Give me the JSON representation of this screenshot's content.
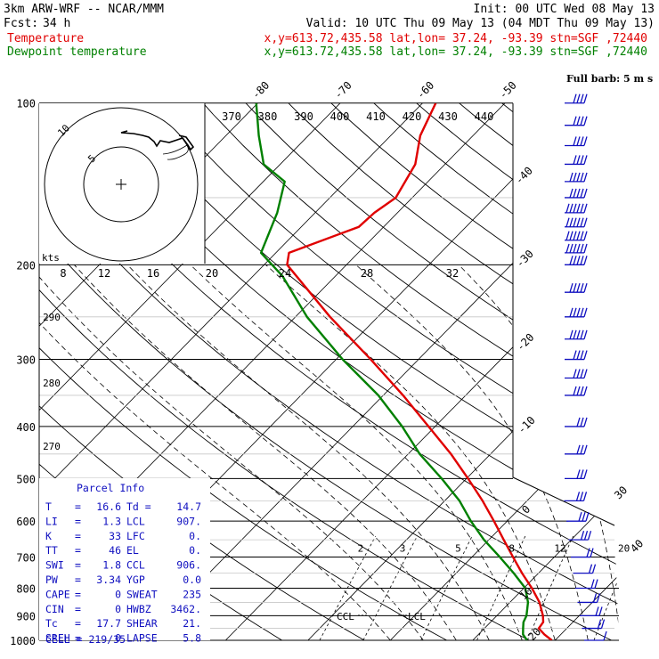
{
  "header": {
    "model": "3km ARW-WRF -- NCAR/MMM",
    "init": "Init: 00 UTC Wed 08 May 13",
    "fcst_label": "Fcst:",
    "fcst_value": "34 h",
    "valid": "Valid: 10 UTC Thu 09 May 13 (04 MDT Thu 09 May 13)",
    "temp_label": "Temperature",
    "dew_label": "Dewpoint temperature",
    "temp_info": "x,y=613.72,435.58   lat,lon= 37.24, -93.39   stn=SGF ,72440",
    "dew_info": "x,y=613.72,435.58   lat,lon= 37.24, -93.39   stn=SGF ,72440"
  },
  "colors": {
    "temperature": "#e00000",
    "dewpoint": "#008000",
    "panel": "#1010c0",
    "grid": "#000000",
    "hodo_trace": "#000000"
  },
  "chart_data": {
    "type": "line",
    "title": "",
    "xlabel": "",
    "ylabel": "",
    "pressure_ticks": [
      100,
      200,
      300,
      400,
      500,
      600,
      700,
      800,
      900,
      1000
    ],
    "skew_temperature_labels": [
      -80,
      -70,
      -60,
      -50,
      -40,
      -30,
      -20,
      -10,
      0,
      10,
      20,
      30,
      40
    ],
    "theta_labels_top": [
      370,
      380,
      390,
      400,
      410,
      420,
      430,
      440
    ],
    "theta_labels_left": [
      290,
      280,
      270
    ],
    "mixing_ratio_labels": [
      2,
      3,
      5,
      8,
      12,
      20
    ],
    "series": [
      {
        "name": "Temperature",
        "x_label": "temperature_C",
        "points": [
          [
            1000,
            19.6
          ],
          [
            975,
            18.0
          ],
          [
            950,
            16.6
          ],
          [
            925,
            16.4
          ],
          [
            900,
            15.6
          ],
          [
            850,
            13.6
          ],
          [
            800,
            11.0
          ],
          [
            750,
            8.0
          ],
          [
            700,
            5.0
          ],
          [
            650,
            1.8
          ],
          [
            600,
            -1.6
          ],
          [
            550,
            -5.4
          ],
          [
            500,
            -9.8
          ],
          [
            450,
            -14.8
          ],
          [
            400,
            -20.8
          ],
          [
            350,
            -27.6
          ],
          [
            300,
            -35.8
          ],
          [
            250,
            -45.8
          ],
          [
            200,
            -57.2
          ],
          [
            190,
            -58.4
          ],
          [
            170,
            -53.0
          ],
          [
            160,
            -52.8
          ],
          [
            150,
            -52.0
          ],
          [
            130,
            -53.6
          ],
          [
            115,
            -56.4
          ],
          [
            100,
            -58.4
          ]
        ]
      },
      {
        "name": "Dewpoint temperature",
        "x_label": "dewpoint_C",
        "points": [
          [
            1000,
            16.6
          ],
          [
            975,
            15.4
          ],
          [
            950,
            14.7
          ],
          [
            925,
            14.0
          ],
          [
            900,
            13.6
          ],
          [
            850,
            12.2
          ],
          [
            800,
            10.2
          ],
          [
            750,
            7.0
          ],
          [
            700,
            3.4
          ],
          [
            650,
            -0.6
          ],
          [
            600,
            -4.4
          ],
          [
            550,
            -8.2
          ],
          [
            500,
            -13.0
          ],
          [
            450,
            -18.6
          ],
          [
            400,
            -24.0
          ],
          [
            350,
            -30.6
          ],
          [
            300,
            -39.2
          ],
          [
            250,
            -48.6
          ],
          [
            210,
            -56.4
          ],
          [
            190,
            -61.8
          ],
          [
            160,
            -64.6
          ],
          [
            140,
            -67.4
          ],
          [
            130,
            -72.0
          ],
          [
            115,
            -76.0
          ],
          [
            100,
            -80.2
          ]
        ]
      }
    ],
    "winds": {
      "units_note": "Full barb: 5 m s",
      "hodograph_ring_labels": [
        5,
        10
      ],
      "hodograph_units": "kts",
      "barbs": [
        {
          "p": 100,
          "speed": 20
        },
        {
          "p": 110,
          "speed": 20
        },
        {
          "p": 120,
          "speed": 20
        },
        {
          "p": 130,
          "speed": 20
        },
        {
          "p": 140,
          "speed": 25
        },
        {
          "p": 150,
          "speed": 25
        },
        {
          "p": 160,
          "speed": 30
        },
        {
          "p": 170,
          "speed": 30
        },
        {
          "p": 180,
          "speed": 30
        },
        {
          "p": 190,
          "speed": 30
        },
        {
          "p": 200,
          "speed": 25
        },
        {
          "p": 225,
          "speed": 25
        },
        {
          "p": 250,
          "speed": 25
        },
        {
          "p": 275,
          "speed": 25
        },
        {
          "p": 300,
          "speed": 20
        },
        {
          "p": 325,
          "speed": 20
        },
        {
          "p": 350,
          "speed": 20
        },
        {
          "p": 400,
          "speed": 15
        },
        {
          "p": 450,
          "speed": 15
        },
        {
          "p": 500,
          "speed": 15
        },
        {
          "p": 550,
          "speed": 15
        },
        {
          "p": 600,
          "speed": 15
        },
        {
          "p": 650,
          "speed": 15
        },
        {
          "p": 700,
          "speed": 10
        },
        {
          "p": 750,
          "speed": 10
        },
        {
          "p": 800,
          "speed": 10
        },
        {
          "p": 850,
          "speed": 10
        },
        {
          "p": 900,
          "speed": 10
        },
        {
          "p": 950,
          "speed": 10
        },
        {
          "p": 1000,
          "speed": 5
        }
      ]
    },
    "levels": {
      "ccl_label": "CCL",
      "lcl_label": "LCL"
    }
  },
  "parcel_info": {
    "title": "Parcel Info",
    "rows": [
      {
        "k1": "T",
        "v1": "16.6",
        "k2": "Td =",
        "v2": "14.7"
      },
      {
        "k1": "LI",
        "v1": "1.3",
        "k2": "LCL",
        "v2": "907."
      },
      {
        "k1": "K",
        "v1": "33",
        "k2": "LFC",
        "v2": "0."
      },
      {
        "k1": "TT",
        "v1": "46",
        "k2": "EL",
        "v2": "0."
      },
      {
        "k1": "SWI",
        "v1": "1.8",
        "k2": "CCL",
        "v2": "906."
      },
      {
        "k1": "PW",
        "v1": "3.34",
        "k2": "YGP",
        "v2": "0.0"
      },
      {
        "k1": "CAPE",
        "v1": "0",
        "k2": "SWEAT",
        "v2": "235"
      },
      {
        "k1": "CIN",
        "v1": "0",
        "k2": "HWBZ",
        "v2": "3462."
      },
      {
        "k1": "Tc",
        "v1": "17.7",
        "k2": "SHEAR",
        "v2": "21."
      },
      {
        "k1": "SREH",
        "v1": "0",
        "k2": "LAPSE",
        "v2": "5.8"
      }
    ],
    "cell": "CELL = 219/35"
  }
}
